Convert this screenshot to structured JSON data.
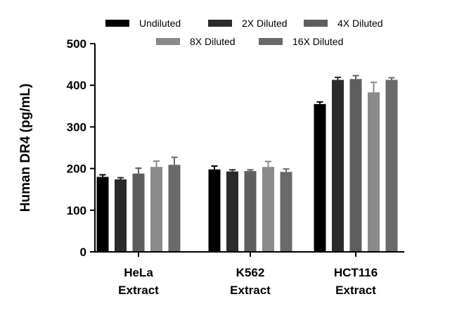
{
  "chart_data": {
    "type": "bar",
    "title": "",
    "xlabel": "",
    "ylabel": "Human DR4 (pg/mL)",
    "ylim": [
      0,
      500
    ],
    "yticks": [
      0,
      100,
      200,
      300,
      400,
      500
    ],
    "categories": [
      [
        "HeLa",
        "Extract"
      ],
      [
        "K562",
        "Extract"
      ],
      [
        "HCT116",
        "Extract"
      ]
    ],
    "series": [
      {
        "name": "Undiluted",
        "color": "#000000",
        "values": [
          180,
          198,
          355
        ],
        "errors": [
          5,
          8,
          5
        ]
      },
      {
        "name": "2X Diluted",
        "color": "#2b2b2b",
        "values": [
          174,
          193,
          413
        ],
        "errors": [
          4,
          4,
          6
        ]
      },
      {
        "name": "4X Diluted",
        "color": "#5e5e5e",
        "values": [
          188,
          194,
          415
        ],
        "errors": [
          13,
          3,
          8
        ]
      },
      {
        "name": "8X Diluted",
        "color": "#8a8a8a",
        "values": [
          204,
          204,
          383
        ],
        "errors": [
          14,
          13,
          24
        ]
      },
      {
        "name": "16X Diluted",
        "color": "#6a6a6a",
        "values": [
          209,
          192,
          413
        ],
        "errors": [
          18,
          7,
          5
        ]
      }
    ],
    "legend_position": "top",
    "grid": false
  }
}
